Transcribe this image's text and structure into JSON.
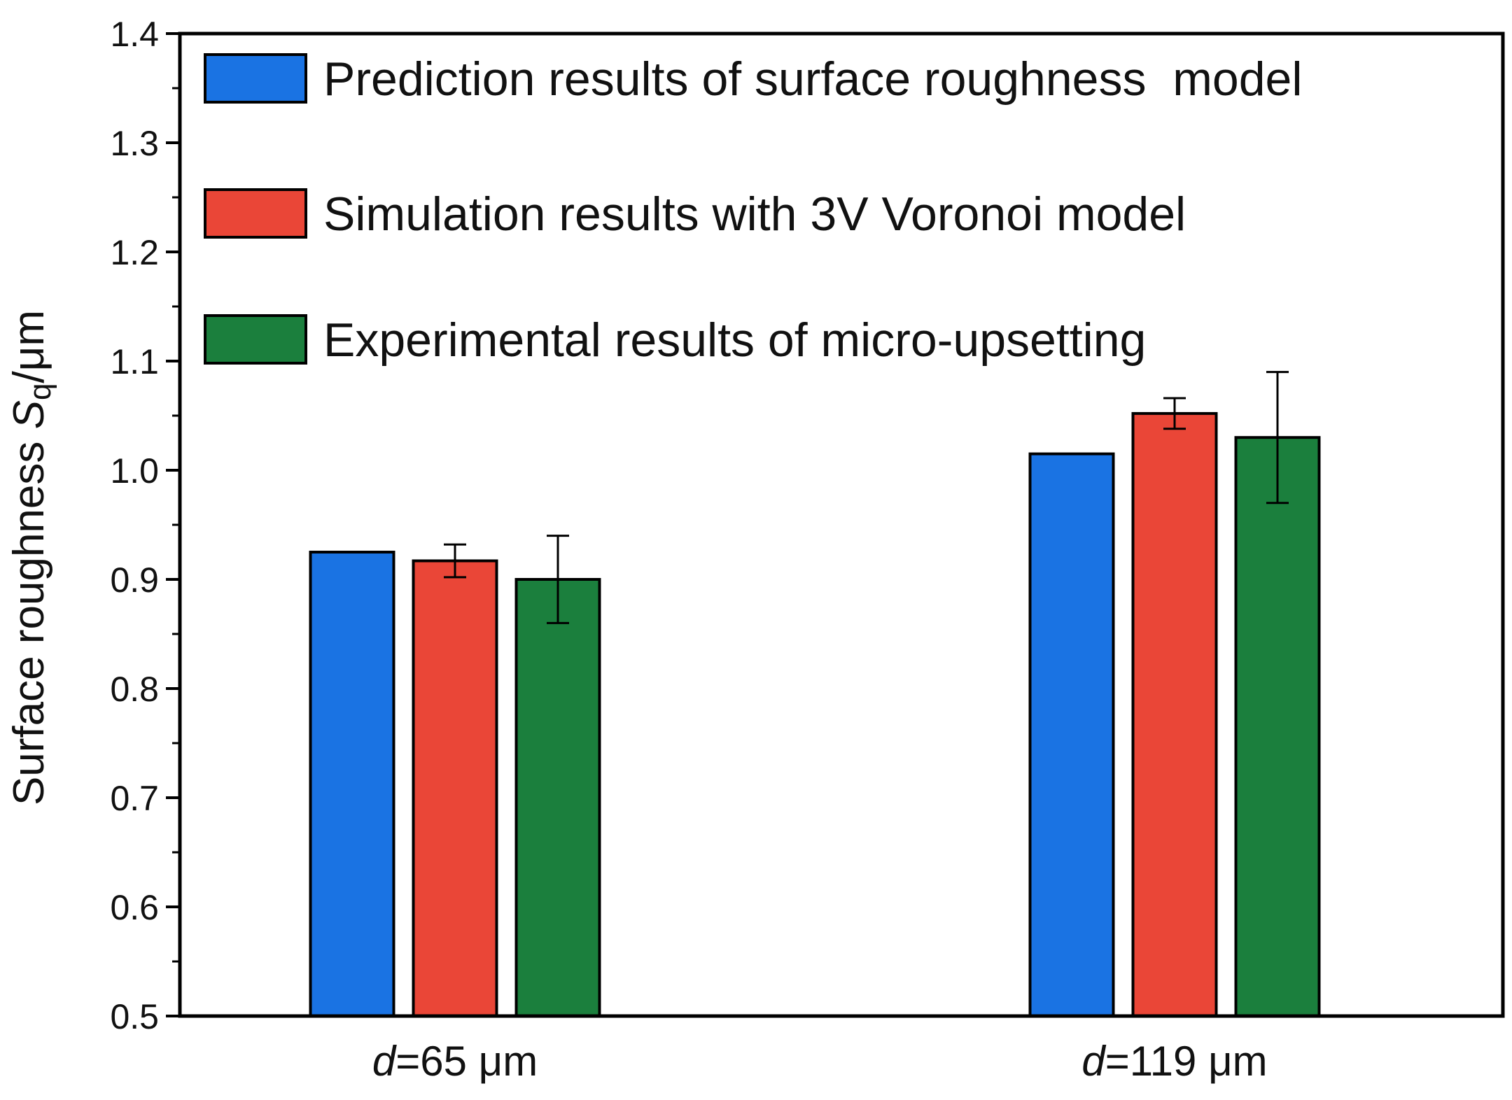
{
  "chart_data": {
    "type": "bar",
    "title": "",
    "xlabel": "",
    "ylabel": {
      "prefix": "Surface roughness ",
      "symbol": "S",
      "subscript": "q",
      "suffix": "/μm"
    },
    "ylim": [
      0.5,
      1.4
    ],
    "yticks": [
      "0.5",
      "0.6",
      "0.7",
      "0.8",
      "0.9",
      "1.0",
      "1.1",
      "1.2",
      "1.3",
      "1.4"
    ],
    "grid": false,
    "legend_position": "top-left",
    "categories": [
      {
        "var": "d",
        "rest": "=65 μm"
      },
      {
        "var": "d",
        "rest": "=119 μm"
      }
    ],
    "series": [
      {
        "name": "Prediction results of surface roughness  model",
        "color": "#1a73e3",
        "values": [
          0.925,
          1.015
        ],
        "errors": [
          null,
          null
        ]
      },
      {
        "name": "Simulation results with 3V Voronoi model",
        "color": "#ea4637",
        "values": [
          0.917,
          1.052
        ],
        "errors": [
          0.015,
          0.014
        ]
      },
      {
        "name": "Experimental results of micro-upsetting",
        "color": "#1b7f3d",
        "values": [
          0.9,
          1.03
        ],
        "errors": [
          0.04,
          0.06
        ]
      }
    ]
  }
}
